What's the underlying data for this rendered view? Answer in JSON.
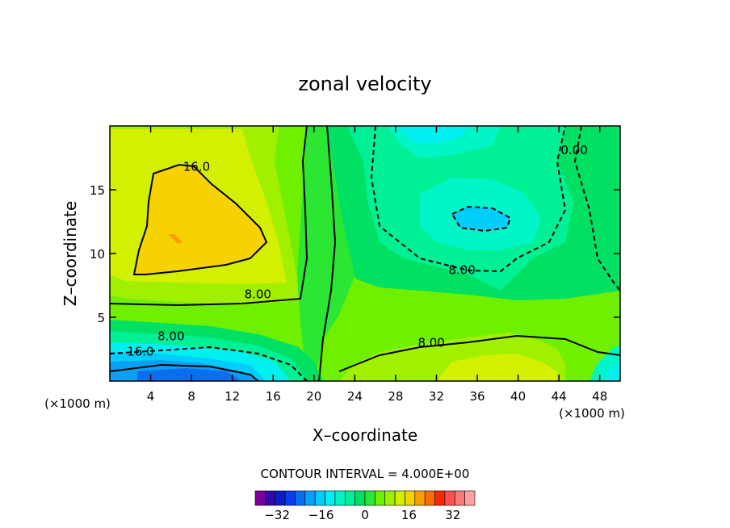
{
  "chart_data": {
    "type": "heatmap",
    "title": "zonal velocity",
    "xlabel": "X–coordinate",
    "ylabel": "Z–coordinate",
    "x_unit_left": "(×1000 m)",
    "x_unit_right": "(×1000 m)",
    "xlim": [
      0,
      50
    ],
    "ylim": [
      0,
      20
    ],
    "x_ticks": [
      4,
      8,
      12,
      16,
      20,
      24,
      28,
      32,
      36,
      40,
      44,
      48
    ],
    "y_ticks": [
      5,
      10,
      15
    ],
    "contour_interval_label": "CONTOUR INTERVAL =  4.000E+00",
    "contour_labels": [
      {
        "text": "16.0",
        "x": 8.5,
        "y": 16.5
      },
      {
        "text": "8.00",
        "x": 14.5,
        "y": 6.5
      },
      {
        "text": "8.00",
        "x": 34.5,
        "y": 8.4
      },
      {
        "text": "8.00",
        "x": 31.5,
        "y": 2.7
      },
      {
        "text": "8.00",
        "x": 6.0,
        "y": 3.2
      },
      {
        "text": "16.0",
        "x": 3.0,
        "y": 2.0
      },
      {
        "text": "0.00",
        "x": 45.5,
        "y": 17.8
      }
    ],
    "colorbar": {
      "ticks": [
        -32,
        -16,
        0,
        16,
        32
      ],
      "tick_labels": [
        "−32",
        "−16",
        "0",
        "16",
        "32"
      ],
      "levels": [
        -40,
        -36,
        -32,
        -28,
        -24,
        -20,
        -16,
        -12,
        -8,
        -4,
        0,
        4,
        8,
        12,
        16,
        20,
        24,
        28,
        32,
        36,
        40
      ],
      "colors": [
        "#7a009e",
        "#2e0aa8",
        "#0a1ec8",
        "#0a3cf0",
        "#0a6ef0",
        "#0aa0f5",
        "#00cdfa",
        "#00f0f0",
        "#00f5c8",
        "#00f096",
        "#00e164",
        "#2be632",
        "#6ef000",
        "#a0f000",
        "#d2f000",
        "#f5d200",
        "#faa000",
        "#fa6e00",
        "#fa2800",
        "#fa5050",
        "#fa7878",
        "#faa0a0"
      ]
    },
    "colormap": "rainbow-diverging"
  }
}
